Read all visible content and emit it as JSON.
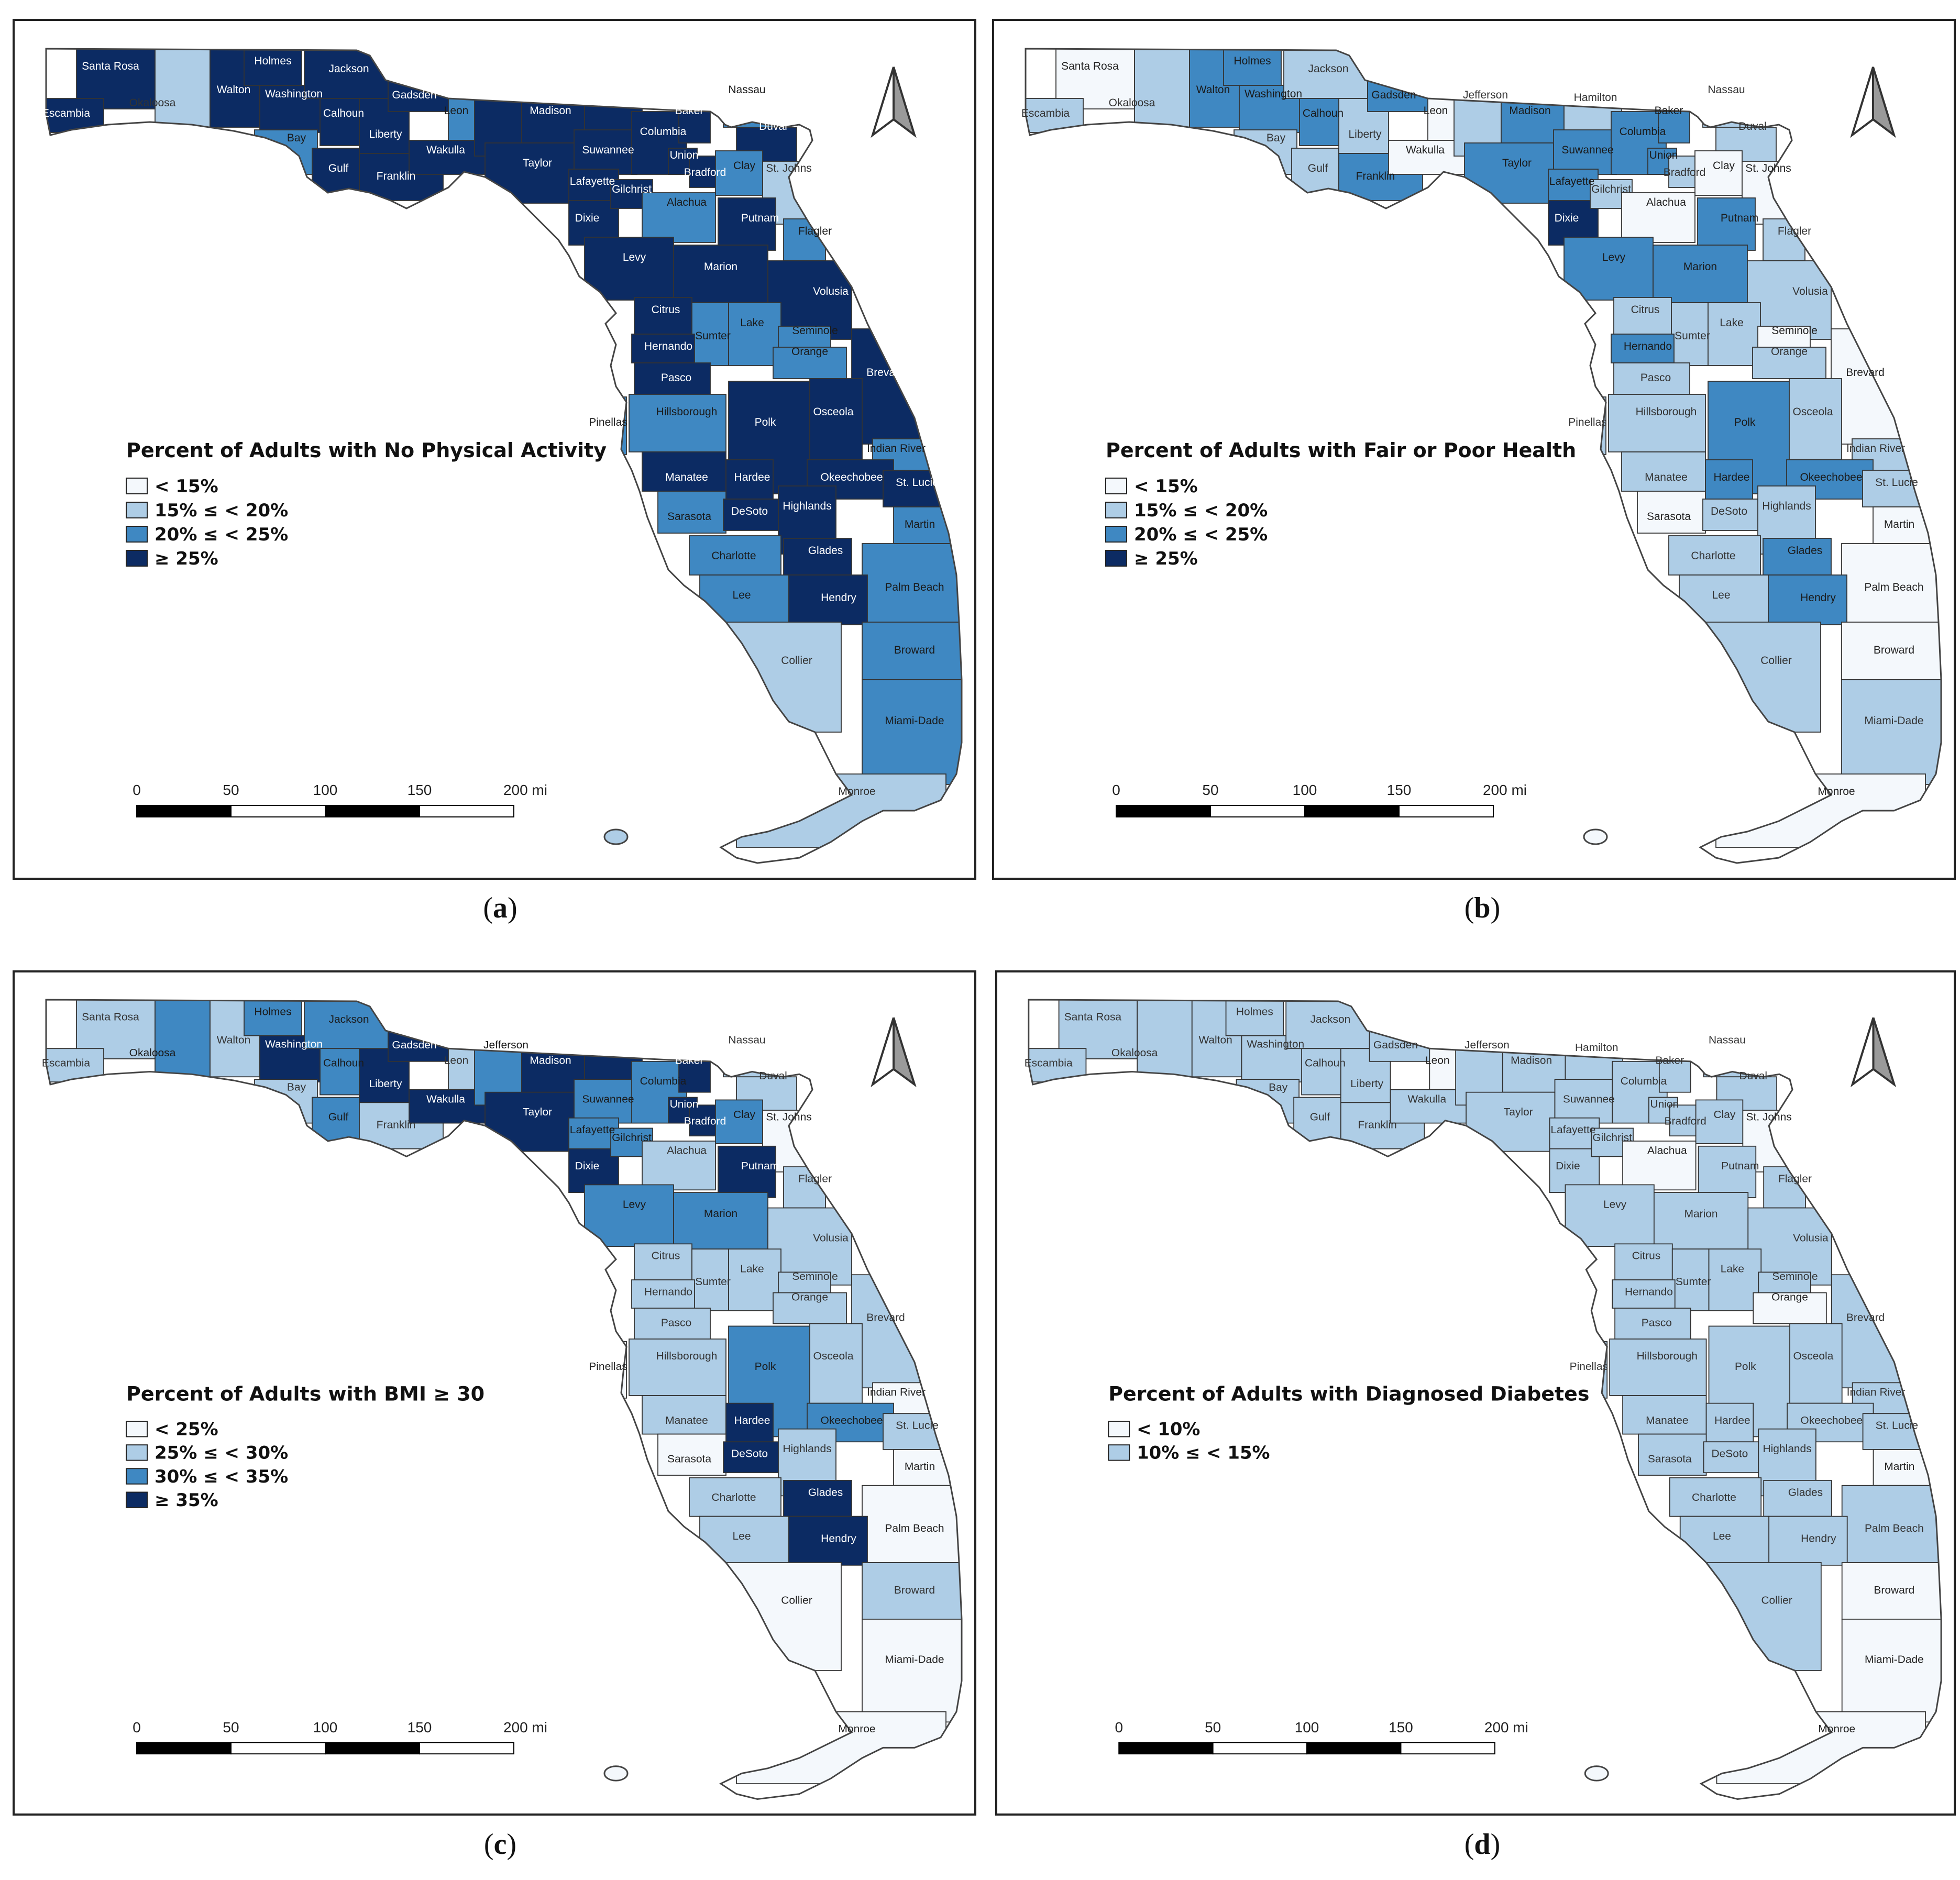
{
  "palette": {
    "white": "#f4f8fc",
    "light": "#aecde6",
    "mid": "#3f88c2",
    "dark": "#0c2b63"
  },
  "scale_bar": {
    "ticks": [
      "0",
      "50",
      "100",
      "150",
      "200 mi"
    ]
  },
  "maps": [
    {
      "id": "a",
      "caption": "a",
      "title": "Percent of Adults with No Physical Activity",
      "legend": [
        {
          "label": "< 15%",
          "color": "white"
        },
        {
          "label": "15% ≤ < 20%",
          "color": "light"
        },
        {
          "label": "20% ≤ < 25%",
          "color": "mid"
        },
        {
          "label": "≥ 25%",
          "color": "dark"
        }
      ],
      "counties": {
        "Escambia": "dark",
        "Santa Rosa": "dark",
        "Okaloosa": "light",
        "Walton": "dark",
        "Holmes": "dark",
        "Washington": "dark",
        "Jackson": "dark",
        "Bay": "mid",
        "Calhoun": "dark",
        "Gulf": "dark",
        "Liberty": "dark",
        "Gadsden": "dark",
        "Franklin": "dark",
        "Leon": "mid",
        "Wakulla": "dark",
        "Jefferson": "dark",
        "Madison": "dark",
        "Taylor": "dark",
        "Hamilton": "dark",
        "Suwannee": "dark",
        "Lafayette": "dark",
        "Dixie": "dark",
        "Columbia": "dark",
        "Baker": "dark",
        "Union": "dark",
        "Bradford": "dark",
        "Gilchrist": "dark",
        "Nassau": "mid",
        "Duval": "dark",
        "Clay": "mid",
        "St. Johns": "light",
        "Alachua": "mid",
        "Putnam": "dark",
        "Flagler": "mid",
        "Levy": "dark",
        "Marion": "dark",
        "Volusia": "dark",
        "Citrus": "dark",
        "Sumter": "mid",
        "Lake": "mid",
        "Seminole": "mid",
        "Orange": "mid",
        "Brevard": "dark",
        "Hernando": "dark",
        "Pasco": "dark",
        "Pinellas": "mid",
        "Hillsborough": "mid",
        "Polk": "dark",
        "Osceola": "dark",
        "Indian River": "mid",
        "Manatee": "dark",
        "Hardee": "dark",
        "Okeechobee": "dark",
        "St. Lucie": "dark",
        "Sarasota": "mid",
        "DeSoto": "dark",
        "Highlands": "dark",
        "Martin": "mid",
        "Charlotte": "mid",
        "Glades": "dark",
        "Palm Beach": "mid",
        "Lee": "mid",
        "Hendry": "dark",
        "Collier": "light",
        "Broward": "mid",
        "Miami-Dade": "mid",
        "Monroe": "light"
      }
    },
    {
      "id": "b",
      "caption": "b",
      "title": "Percent of Adults with Fair or Poor Health",
      "legend": [
        {
          "label": "< 15%",
          "color": "white"
        },
        {
          "label": "15% ≤ < 20%",
          "color": "light"
        },
        {
          "label": "20% ≤  < 25%",
          "color": "mid"
        },
        {
          "label": "≥ 25%",
          "color": "dark"
        }
      ],
      "counties": {
        "Escambia": "light",
        "Santa Rosa": "white",
        "Okaloosa": "light",
        "Walton": "mid",
        "Holmes": "mid",
        "Washington": "mid",
        "Jackson": "light",
        "Bay": "light",
        "Calhoun": "mid",
        "Gulf": "light",
        "Liberty": "light",
        "Gadsden": "mid",
        "Franklin": "mid",
        "Leon": "white",
        "Wakulla": "white",
        "Jefferson": "light",
        "Madison": "mid",
        "Taylor": "mid",
        "Hamilton": "light",
        "Suwannee": "mid",
        "Lafayette": "mid",
        "Dixie": "dark",
        "Columbia": "mid",
        "Baker": "mid",
        "Union": "mid",
        "Bradford": "light",
        "Gilchrist": "light",
        "Nassau": "light",
        "Duval": "light",
        "Clay": "white",
        "St. Johns": "white",
        "Alachua": "white",
        "Putnam": "mid",
        "Flagler": "light",
        "Levy": "mid",
        "Marion": "mid",
        "Volusia": "light",
        "Citrus": "light",
        "Sumter": "light",
        "Lake": "light",
        "Seminole": "white",
        "Orange": "light",
        "Brevard": "white",
        "Hernando": "mid",
        "Pasco": "light",
        "Pinellas": "light",
        "Hillsborough": "light",
        "Polk": "mid",
        "Osceola": "light",
        "Indian River": "light",
        "Manatee": "light",
        "Hardee": "mid",
        "Okeechobee": "mid",
        "St. Lucie": "light",
        "Sarasota": "white",
        "DeSoto": "light",
        "Highlands": "light",
        "Martin": "white",
        "Charlotte": "light",
        "Glades": "mid",
        "Palm Beach": "white",
        "Lee": "light",
        "Hendry": "mid",
        "Collier": "light",
        "Broward": "white",
        "Miami-Dade": "light",
        "Monroe": "white"
      }
    },
    {
      "id": "c",
      "caption": "c",
      "title": "Percent of Adults with BMI ≥ 30",
      "legend": [
        {
          "label": "< 25%",
          "color": "white"
        },
        {
          "label": "25% ≤ < 30%",
          "color": "light"
        },
        {
          "label": "30% ≤  < 35%",
          "color": "mid"
        },
        {
          "label": " ≥ 35%",
          "color": "dark"
        }
      ],
      "counties": {
        "Escambia": "light",
        "Santa Rosa": "light",
        "Okaloosa": "mid",
        "Walton": "light",
        "Holmes": "mid",
        "Washington": "dark",
        "Jackson": "mid",
        "Bay": "light",
        "Calhoun": "mid",
        "Gulf": "mid",
        "Liberty": "dark",
        "Gadsden": "dark",
        "Franklin": "light",
        "Leon": "light",
        "Wakulla": "dark",
        "Jefferson": "mid",
        "Madison": "dark",
        "Taylor": "dark",
        "Hamilton": "dark",
        "Suwannee": "mid",
        "Lafayette": "mid",
        "Dixie": "dark",
        "Columbia": "mid",
        "Baker": "dark",
        "Union": "dark",
        "Bradford": "dark",
        "Gilchrist": "mid",
        "Nassau": "light",
        "Duval": "light",
        "Clay": "mid",
        "St. Johns": "white",
        "Alachua": "light",
        "Putnam": "dark",
        "Flagler": "light",
        "Levy": "mid",
        "Marion": "mid",
        "Volusia": "light",
        "Citrus": "light",
        "Sumter": "light",
        "Lake": "light",
        "Seminole": "light",
        "Orange": "light",
        "Brevard": "light",
        "Hernando": "light",
        "Pasco": "light",
        "Pinellas": "white",
        "Hillsborough": "light",
        "Polk": "mid",
        "Osceola": "light",
        "Indian River": "white",
        "Manatee": "light",
        "Hardee": "dark",
        "Okeechobee": "mid",
        "St. Lucie": "light",
        "Sarasota": "white",
        "DeSoto": "dark",
        "Highlands": "light",
        "Martin": "white",
        "Charlotte": "light",
        "Glades": "dark",
        "Palm Beach": "white",
        "Lee": "light",
        "Hendry": "dark",
        "Collier": "white",
        "Broward": "light",
        "Miami-Dade": "white",
        "Monroe": "white"
      }
    },
    {
      "id": "d",
      "caption": "d",
      "title": "Percent of Adults with Diagnosed Diabetes",
      "legend": [
        {
          "label": "< 10%",
          "color": "white"
        },
        {
          "label": "10% ≤ < 15%",
          "color": "light"
        }
      ],
      "counties": {
        "Escambia": "light",
        "Santa Rosa": "light",
        "Okaloosa": "light",
        "Walton": "light",
        "Holmes": "light",
        "Washington": "light",
        "Jackson": "light",
        "Bay": "light",
        "Calhoun": "light",
        "Gulf": "light",
        "Liberty": "light",
        "Gadsden": "light",
        "Franklin": "light",
        "Leon": "white",
        "Wakulla": "light",
        "Jefferson": "light",
        "Madison": "light",
        "Taylor": "light",
        "Hamilton": "light",
        "Suwannee": "light",
        "Lafayette": "light",
        "Dixie": "light",
        "Columbia": "light",
        "Baker": "light",
        "Union": "light",
        "Bradford": "light",
        "Gilchrist": "light",
        "Nassau": "light",
        "Duval": "light",
        "Clay": "light",
        "St. Johns": "white",
        "Alachua": "white",
        "Putnam": "light",
        "Flagler": "light",
        "Levy": "light",
        "Marion": "light",
        "Volusia": "light",
        "Citrus": "light",
        "Sumter": "light",
        "Lake": "light",
        "Seminole": "light",
        "Orange": "white",
        "Brevard": "light",
        "Hernando": "light",
        "Pasco": "light",
        "Pinellas": "light",
        "Hillsborough": "light",
        "Polk": "light",
        "Osceola": "light",
        "Indian River": "light",
        "Manatee": "light",
        "Hardee": "light",
        "Okeechobee": "light",
        "St. Lucie": "light",
        "Sarasota": "light",
        "DeSoto": "light",
        "Highlands": "light",
        "Martin": "white",
        "Charlotte": "light",
        "Glades": "light",
        "Palm Beach": "light",
        "Lee": "light",
        "Hendry": "light",
        "Collier": "light",
        "Broward": "white",
        "Miami-Dade": "white",
        "Monroe": "white"
      }
    }
  ]
}
